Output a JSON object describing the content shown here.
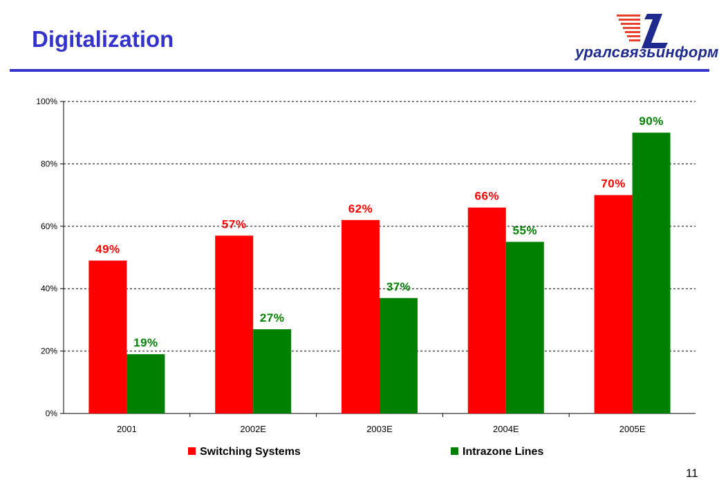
{
  "slide": {
    "title": "Digitalization",
    "page_number": "11",
    "logo_text": "уралсвязьинформ"
  },
  "colors": {
    "title": "#3333cc",
    "rule": "#3333cc",
    "switching": "#ff0000",
    "intrazone": "#008000",
    "logo": "#1f2a8f",
    "logo_stripes": "#e8402a"
  },
  "chart_data": {
    "type": "bar",
    "categories": [
      "2001",
      "2002E",
      "2003E",
      "2004E",
      "2005E"
    ],
    "series": [
      {
        "name": "Switching Systems",
        "values": [
          49,
          57,
          62,
          66,
          70
        ],
        "labels": [
          "49%",
          "57%",
          "62%",
          "66%",
          "70%"
        ],
        "color": "#ff0000"
      },
      {
        "name": "Intrazone Lines",
        "values": [
          19,
          27,
          37,
          55,
          90
        ],
        "labels": [
          "19%",
          "27%",
          "37%",
          "55%",
          "90%"
        ],
        "color": "#008000"
      }
    ],
    "ylim": [
      0,
      100
    ],
    "yticks": [
      "0%",
      "20%",
      "40%",
      "60%",
      "80%",
      "100%"
    ],
    "grid": true,
    "legend": "bottom"
  }
}
